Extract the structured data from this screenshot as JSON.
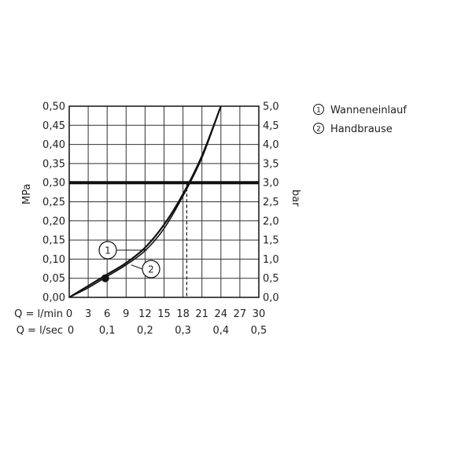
{
  "chart_data": {
    "type": "line",
    "y_left": {
      "label": "MPa",
      "ticks": [
        "0,00",
        "0,05",
        "0,10",
        "0,15",
        "0,20",
        "0,25",
        "0,30",
        "0,35",
        "0,40",
        "0,45",
        "0,50"
      ],
      "range": [
        0,
        0.5
      ]
    },
    "y_right": {
      "label": "bar",
      "ticks": [
        "0,0",
        "0,5",
        "1,0",
        "1,5",
        "2,0",
        "2,5",
        "3,0",
        "3,5",
        "4,0",
        "4,5",
        "5,0"
      ],
      "range": [
        0,
        5
      ]
    },
    "x_lmin": {
      "label": "Q = l/min",
      "ticks": [
        "0",
        "3",
        "6",
        "9",
        "12",
        "15",
        "18",
        "21",
        "24",
        "27",
        "30"
      ],
      "range": [
        0,
        30
      ]
    },
    "x_lsec": {
      "label": "Q = l/sec",
      "ticks": [
        "0",
        "0,1",
        "0,2",
        "0,3",
        "0,4",
        "0,5"
      ]
    },
    "grid": true,
    "reference": {
      "pressure_mpa": 0.3,
      "flow_lmin": 18.6
    },
    "series": [
      {
        "name": "Wanneneinlauf",
        "marker": "1",
        "points": [
          [
            0,
            0
          ],
          [
            3,
            0.03
          ],
          [
            6,
            0.06
          ],
          [
            9,
            0.09
          ],
          [
            12,
            0.13
          ],
          [
            15,
            0.19
          ],
          [
            18,
            0.27
          ],
          [
            21,
            0.37
          ],
          [
            24,
            0.5
          ]
        ]
      },
      {
        "name": "Handbrause",
        "marker": "2",
        "points": [
          [
            0,
            0
          ],
          [
            3,
            0.025
          ],
          [
            6,
            0.055
          ],
          [
            9,
            0.085
          ],
          [
            12,
            0.122
          ],
          [
            15,
            0.18
          ],
          [
            18,
            0.265
          ],
          [
            21,
            0.365
          ],
          [
            24,
            0.5
          ]
        ]
      }
    ],
    "highlight_point": [
      5.7,
      0.05
    ],
    "legend": [
      {
        "marker": "1",
        "text": "Wanneneinlauf"
      },
      {
        "marker": "2",
        "text": "Handbrause"
      }
    ],
    "legend_position": "right"
  }
}
